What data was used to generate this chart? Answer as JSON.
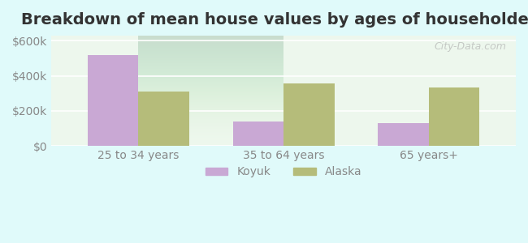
{
  "title": "Breakdown of mean house values by ages of householders",
  "categories": [
    "25 to 34 years",
    "35 to 64 years",
    "65 years+"
  ],
  "koyuk_values": [
    520000,
    140000,
    130000
  ],
  "alaska_values": [
    310000,
    355000,
    335000
  ],
  "koyuk_color": "#c9a8d4",
  "alaska_color": "#b5bc7a",
  "ylim": [
    0,
    630000
  ],
  "yticks": [
    0,
    200000,
    400000,
    600000
  ],
  "ytick_labels": [
    "$0",
    "$200k",
    "$400k",
    "$600k"
  ],
  "background_color": "#e0fafa",
  "plot_bg_gradient_top": "#e8f5e8",
  "plot_bg_gradient_bottom": "#f0faf0",
  "bar_width": 0.35,
  "legend_labels": [
    "Koyuk",
    "Alaska"
  ],
  "title_fontsize": 14,
  "tick_fontsize": 10,
  "legend_fontsize": 10,
  "watermark": "City-Data.com"
}
